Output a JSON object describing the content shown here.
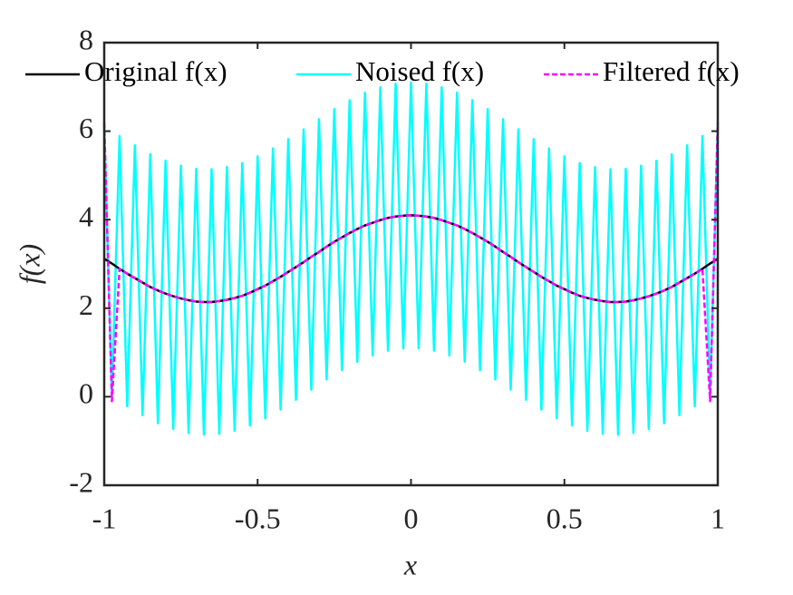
{
  "chart_data": {
    "type": "line",
    "xlabel": "x",
    "ylabel": "f(x)",
    "x": [
      -1,
      -0.975,
      -0.95,
      -0.925,
      -0.9,
      -0.875,
      -0.85,
      -0.825,
      -0.8,
      -0.775,
      -0.75,
      -0.725,
      -0.7,
      -0.675,
      -0.65,
      -0.625,
      -0.6,
      -0.575,
      -0.55,
      -0.525,
      -0.5,
      -0.475,
      -0.45,
      -0.425,
      -0.4,
      -0.375,
      -0.35,
      -0.325,
      -0.3,
      -0.275,
      -0.25,
      -0.225,
      -0.2,
      -0.175,
      -0.15,
      -0.125,
      -0.1,
      -0.075,
      -0.05,
      -0.025,
      0,
      0.025,
      0.05,
      0.075,
      0.1,
      0.125,
      0.15,
      0.175,
      0.2,
      0.225,
      0.25,
      0.275,
      0.3,
      0.325,
      0.35,
      0.375,
      0.4,
      0.425,
      0.45,
      0.475,
      0.5,
      0.525,
      0.55,
      0.575,
      0.6,
      0.625,
      0.65,
      0.675,
      0.7,
      0.725,
      0.75,
      0.775,
      0.8,
      0.825,
      0.85,
      0.875,
      0.9,
      0.925,
      0.95,
      0.975,
      1
    ],
    "series": [
      {
        "name": "Noised f(x)",
        "color": "#00ffff",
        "dash": false,
        "values": [
          6.12,
          0.01,
          5.89,
          -0.22,
          5.68,
          -0.42,
          5.48,
          -0.6,
          5.33,
          -0.73,
          5.22,
          -0.82,
          5.15,
          -0.86,
          5.14,
          -0.84,
          5.19,
          -0.77,
          5.28,
          -0.65,
          5.43,
          -0.49,
          5.61,
          -0.29,
          5.82,
          -0.07,
          6.04,
          0.16,
          6.27,
          0.39,
          6.5,
          0.6,
          6.7,
          0.79,
          6.87,
          0.93,
          6.99,
          1.04,
          7.07,
          1.09,
          7.1,
          1.09,
          7.07,
          1.04,
          6.99,
          0.93,
          6.87,
          0.79,
          6.7,
          0.6,
          6.5,
          0.39,
          6.27,
          0.16,
          6.04,
          -0.07,
          5.82,
          -0.29,
          5.61,
          -0.49,
          5.43,
          -0.65,
          5.28,
          -0.77,
          5.19,
          -0.84,
          5.14,
          -0.86,
          5.15,
          -0.82,
          5.22,
          -0.73,
          5.33,
          -0.6,
          5.48,
          -0.42,
          5.68,
          -0.22,
          5.89,
          0.01,
          6.12
        ]
      },
      {
        "name": "Original f(x)",
        "color": "#000000",
        "dash": false,
        "values": [
          3.12,
          3.01,
          2.89,
          2.78,
          2.68,
          2.58,
          2.48,
          2.4,
          2.33,
          2.27,
          2.22,
          2.18,
          2.15,
          2.14,
          2.14,
          2.16,
          2.19,
          2.23,
          2.28,
          2.35,
          2.43,
          2.51,
          2.61,
          2.71,
          2.82,
          2.93,
          3.04,
          3.16,
          3.27,
          3.39,
          3.5,
          3.6,
          3.7,
          3.79,
          3.87,
          3.93,
          3.99,
          4.04,
          4.07,
          4.09,
          4.1,
          4.09,
          4.07,
          4.04,
          3.99,
          3.93,
          3.87,
          3.79,
          3.7,
          3.6,
          3.5,
          3.39,
          3.27,
          3.16,
          3.04,
          2.93,
          2.82,
          2.71,
          2.61,
          2.51,
          2.43,
          2.35,
          2.28,
          2.23,
          2.19,
          2.16,
          2.14,
          2.14,
          2.15,
          2.18,
          2.22,
          2.27,
          2.33,
          2.4,
          2.48,
          2.58,
          2.68,
          2.78,
          2.89,
          3.01,
          3.12
        ]
      },
      {
        "name": "Filtered f(x)",
        "color": "#ff00ff",
        "dash": true,
        "values": [
          6.2,
          -0.1,
          2.89,
          2.78,
          2.68,
          2.58,
          2.48,
          2.4,
          2.33,
          2.27,
          2.22,
          2.18,
          2.15,
          2.14,
          2.14,
          2.16,
          2.19,
          2.23,
          2.28,
          2.35,
          2.43,
          2.51,
          2.61,
          2.71,
          2.82,
          2.93,
          3.04,
          3.16,
          3.27,
          3.39,
          3.5,
          3.6,
          3.7,
          3.79,
          3.87,
          3.93,
          3.99,
          4.04,
          4.07,
          4.09,
          4.1,
          4.09,
          4.07,
          4.04,
          3.99,
          3.93,
          3.87,
          3.79,
          3.7,
          3.6,
          3.5,
          3.39,
          3.27,
          3.16,
          3.04,
          2.93,
          2.82,
          2.71,
          2.61,
          2.51,
          2.43,
          2.35,
          2.28,
          2.23,
          2.19,
          2.16,
          2.14,
          2.14,
          2.15,
          2.18,
          2.22,
          2.27,
          2.33,
          2.4,
          2.48,
          2.58,
          2.68,
          2.78,
          2.89,
          -0.1,
          6.2
        ]
      }
    ],
    "legend_order": [
      1,
      0,
      2
    ],
    "xlim": [
      -1,
      1
    ],
    "xticks": [
      -1,
      -0.5,
      0,
      0.5,
      1
    ],
    "ylim": [
      -2,
      8
    ],
    "yticks": [
      -2,
      0,
      2,
      4,
      6,
      8
    ],
    "grid": false,
    "legend": "top"
  }
}
